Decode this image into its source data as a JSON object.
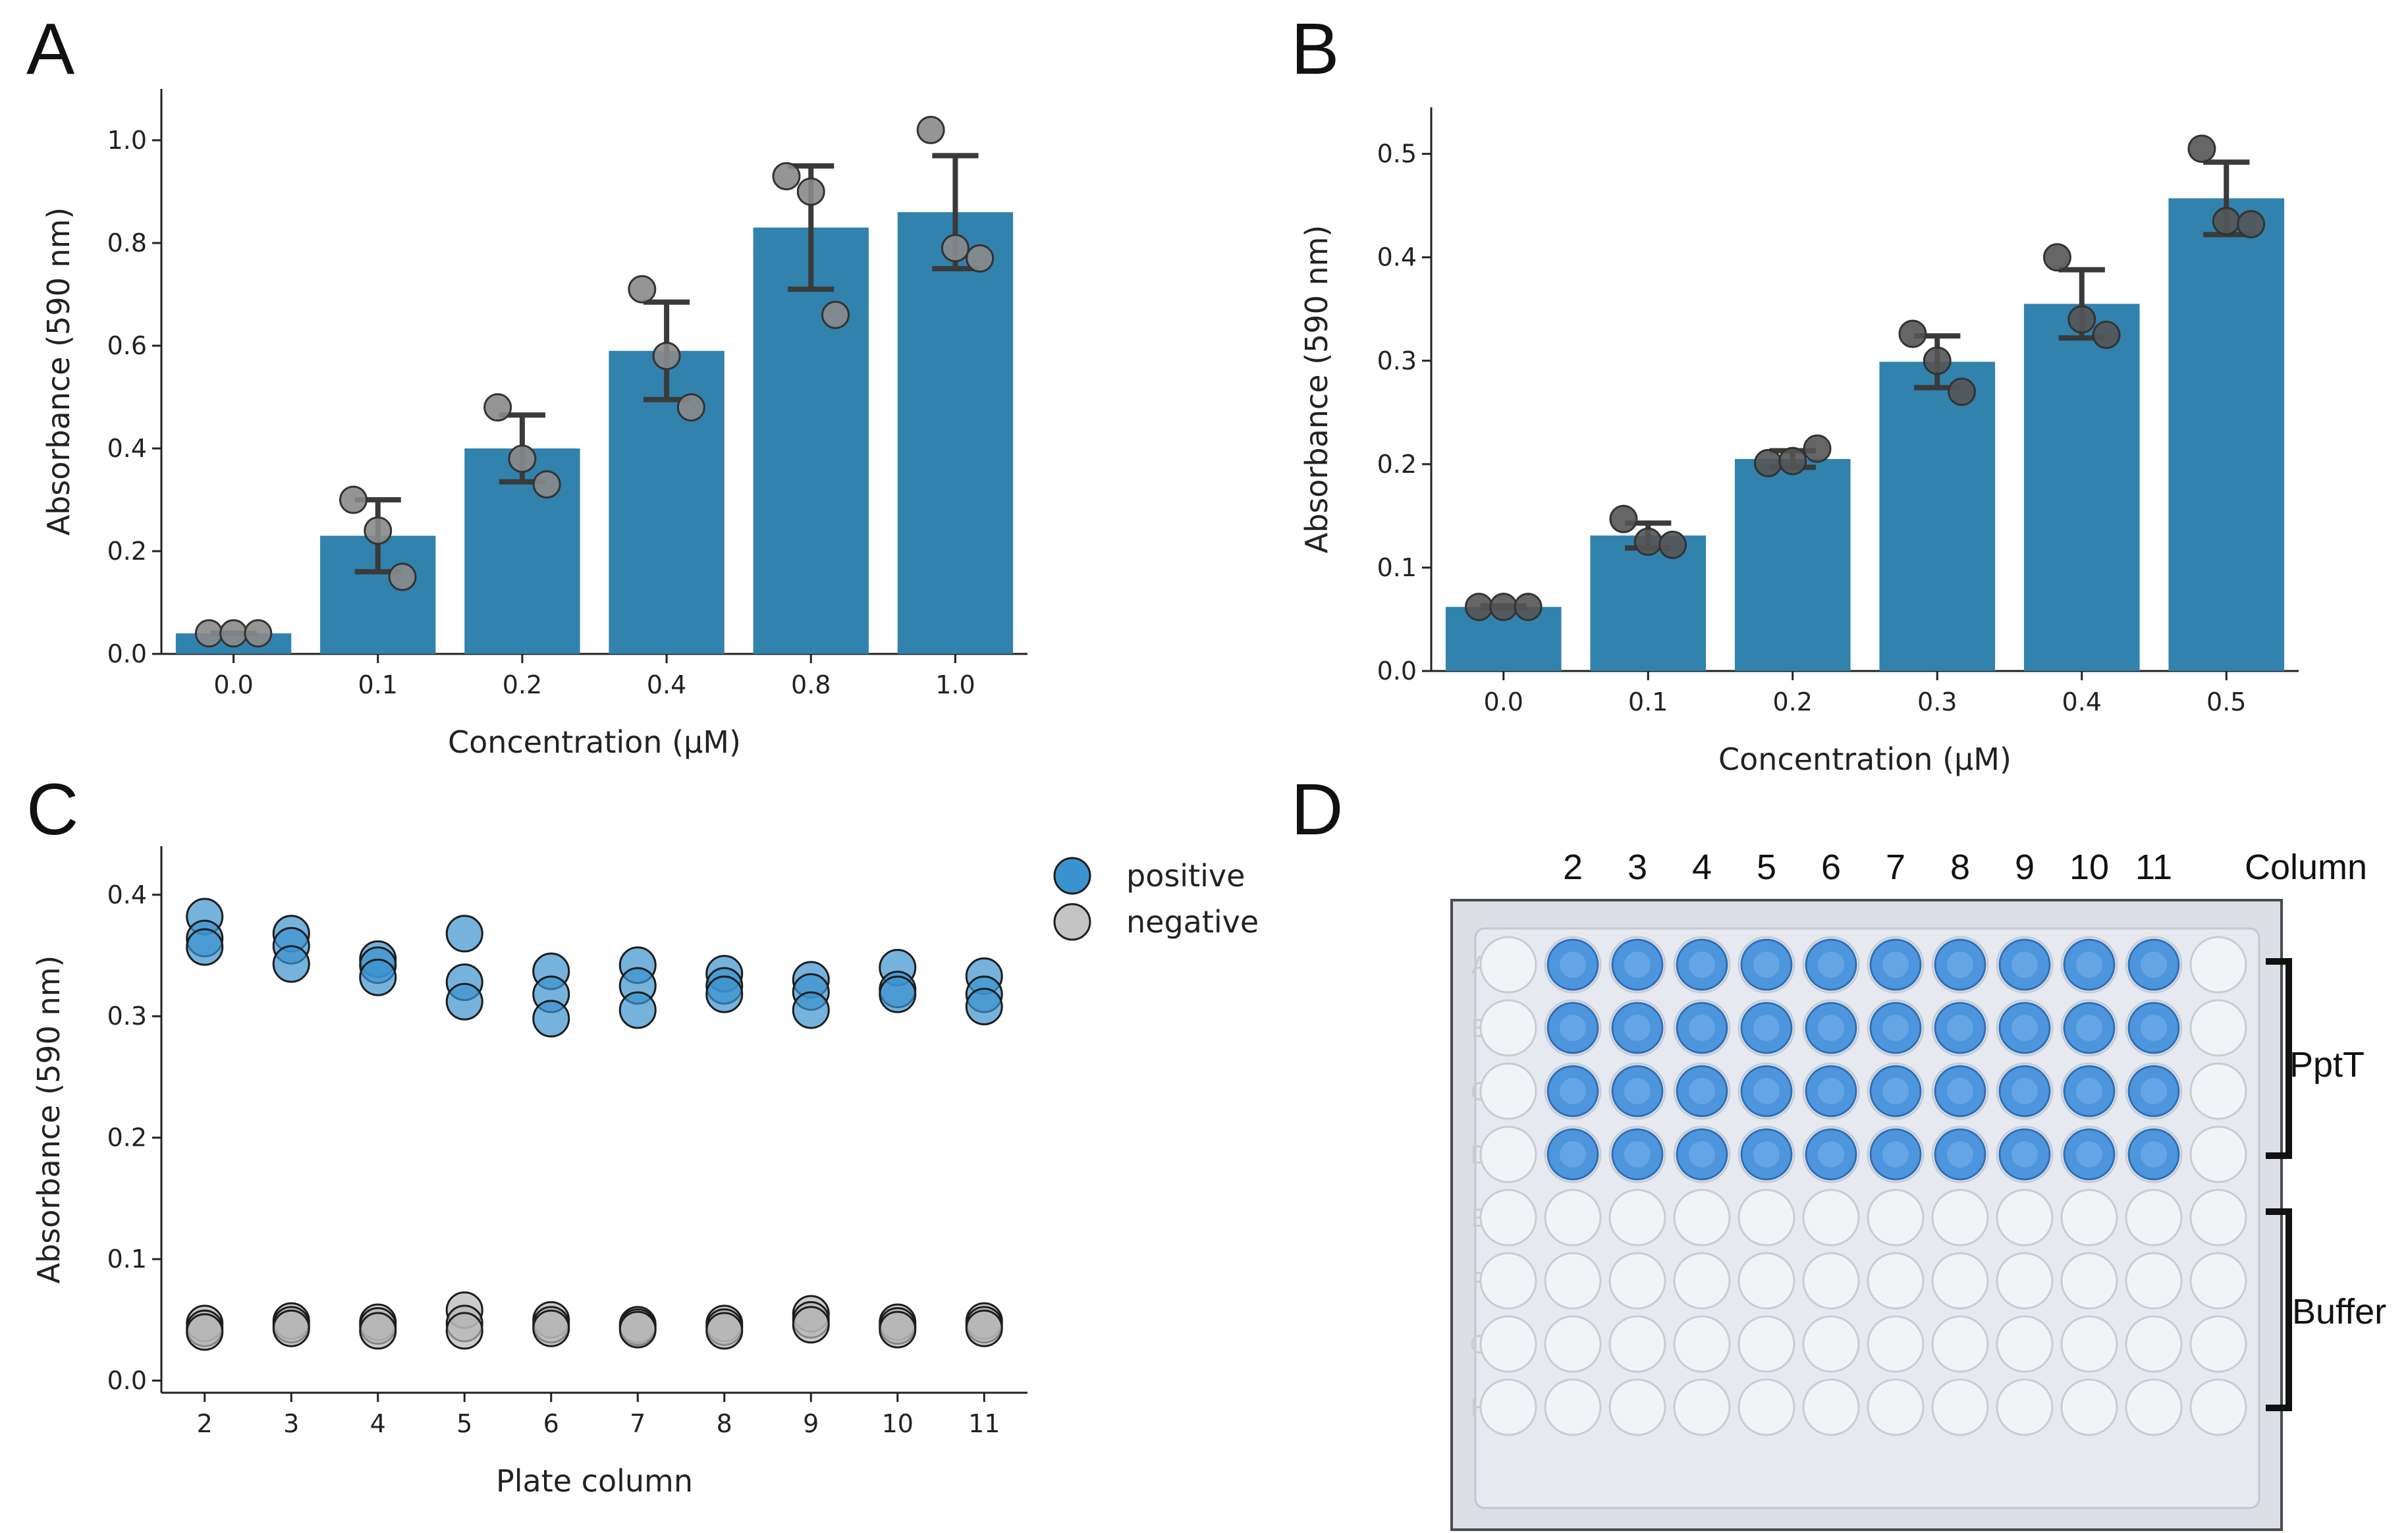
{
  "panels": {
    "A": "A",
    "B": "B",
    "C": "C",
    "D": "D"
  },
  "colors": {
    "bar": "#3182ad",
    "errorbar": "#3a3a3a",
    "point_gray": "#8a8a8a",
    "point_dark": "#555555",
    "positive": "#3a93cf",
    "negative": "#b5b5b5",
    "well_blue": "#4d95dc",
    "plate_bg": "#dcdfe6"
  },
  "chart_data": [
    {
      "id": "A",
      "type": "bar",
      "categories": [
        "0.0",
        "0.1",
        "0.2",
        "0.4",
        "0.8",
        "1.0"
      ],
      "values": [
        0.04,
        0.23,
        0.4,
        0.59,
        0.83,
        0.86
      ],
      "error": [
        0.0,
        0.07,
        0.065,
        0.095,
        0.12,
        0.11
      ],
      "points": [
        [
          0.04,
          0.04,
          0.04
        ],
        [
          0.3,
          0.24,
          0.15
        ],
        [
          0.48,
          0.38,
          0.33
        ],
        [
          0.71,
          0.58,
          0.48
        ],
        [
          0.93,
          0.9,
          0.66
        ],
        [
          1.02,
          0.79,
          0.77
        ]
      ],
      "xlabel": "Concentration (μM)",
      "ylabel": "Absorbance (590 nm)",
      "ylim": [
        0,
        1.1
      ],
      "yticks": [
        "0.0",
        "0.2",
        "0.4",
        "0.6",
        "0.8",
        "1.0"
      ]
    },
    {
      "id": "B",
      "type": "bar",
      "categories": [
        "0.0",
        "0.1",
        "0.2",
        "0.3",
        "0.4",
        "0.5"
      ],
      "values": [
        0.062,
        0.131,
        0.205,
        0.299,
        0.355,
        0.457
      ],
      "error": [
        0.001,
        0.012,
        0.008,
        0.025,
        0.033,
        0.035
      ],
      "points": [
        [
          0.062,
          0.062,
          0.062
        ],
        [
          0.147,
          0.125,
          0.122
        ],
        [
          0.201,
          0.203,
          0.215
        ],
        [
          0.326,
          0.3,
          0.27
        ],
        [
          0.4,
          0.34,
          0.325
        ],
        [
          0.505,
          0.435,
          0.432
        ]
      ],
      "xlabel": "Concentration (μM)",
      "ylabel": "Absorbance (590 nm)",
      "ylim": [
        0,
        0.545
      ],
      "yticks": [
        "0.0",
        "0.1",
        "0.2",
        "0.3",
        "0.4",
        "0.5"
      ]
    },
    {
      "id": "C",
      "type": "scatter",
      "categories": [
        "2",
        "3",
        "4",
        "5",
        "6",
        "7",
        "8",
        "9",
        "10",
        "11"
      ],
      "series": [
        {
          "name": "positive",
          "values": [
            [
              0.382,
              0.364,
              0.357
            ],
            [
              0.368,
              0.358,
              0.343
            ],
            [
              0.347,
              0.342,
              0.332
            ],
            [
              0.368,
              0.328,
              0.312
            ],
            [
              0.337,
              0.318,
              0.298
            ],
            [
              0.342,
              0.325,
              0.305
            ],
            [
              0.335,
              0.325,
              0.318
            ],
            [
              0.33,
              0.32,
              0.305
            ],
            [
              0.34,
              0.322,
              0.318
            ],
            [
              0.333,
              0.318,
              0.308
            ]
          ]
        },
        {
          "name": "negative",
          "values": [
            [
              0.047,
              0.043,
              0.04
            ],
            [
              0.049,
              0.046,
              0.043
            ],
            [
              0.048,
              0.045,
              0.041
            ],
            [
              0.058,
              0.047,
              0.041
            ],
            [
              0.05,
              0.046,
              0.043
            ],
            [
              0.046,
              0.044,
              0.042
            ],
            [
              0.047,
              0.044,
              0.041
            ],
            [
              0.055,
              0.05,
              0.046
            ],
            [
              0.048,
              0.045,
              0.042
            ],
            [
              0.049,
              0.046,
              0.043
            ]
          ]
        }
      ],
      "xlabel": "Plate column",
      "ylabel": "Absorbance (590 nm)",
      "ylim": [
        -0.01,
        0.44
      ],
      "yticks": [
        "0.0",
        "0.1",
        "0.2",
        "0.3",
        "0.4"
      ],
      "legend": [
        "positive",
        "negative"
      ]
    }
  ],
  "plate": {
    "columns": [
      "2",
      "3",
      "4",
      "5",
      "6",
      "7",
      "8",
      "9",
      "10",
      "11"
    ],
    "column_label": "Column",
    "rows": [
      "A",
      "B",
      "C",
      "D",
      "E",
      "F",
      "G",
      "H"
    ],
    "groups": [
      "PptT",
      "Buffer"
    ],
    "filled_rows": 4
  }
}
